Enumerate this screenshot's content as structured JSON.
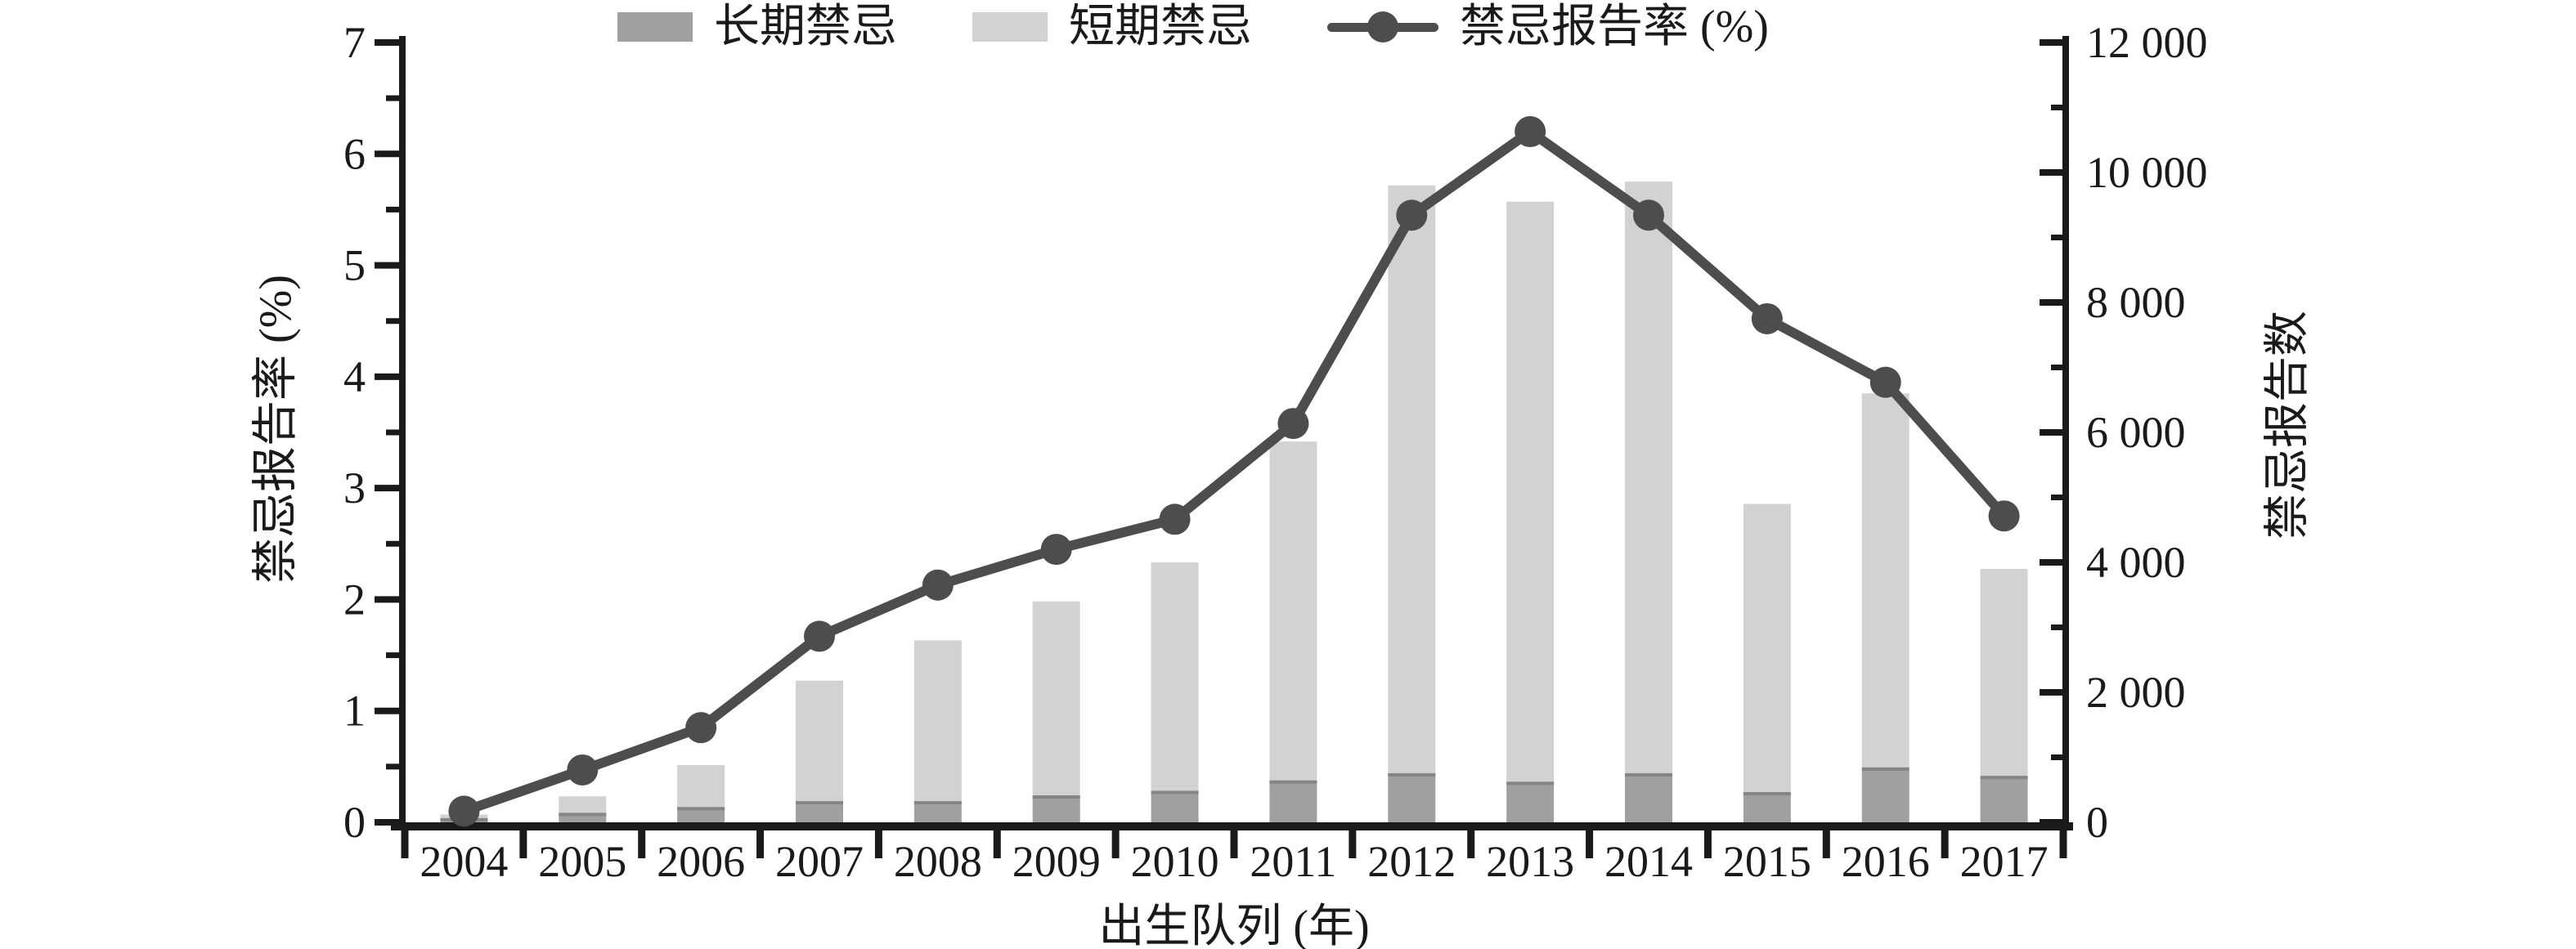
{
  "chart_data": {
    "type": "composite-bar-line",
    "title": "",
    "categories": [
      "2004",
      "2005",
      "2006",
      "2007",
      "2008",
      "2009",
      "2010",
      "2011",
      "2012",
      "2013",
      "2014",
      "2015",
      "2016",
      "2017"
    ],
    "series": [
      {
        "name": "长期禁忌",
        "type": "bar-stacked",
        "axis": "right",
        "values": [
          40,
          120,
          210,
          300,
          300,
          390,
          460,
          620,
          730,
          600,
          730,
          440,
          820,
          690
        ],
        "color": "#a0a0a0",
        "edge_color": "#858585"
      },
      {
        "name": "短期禁忌",
        "type": "bar-stacked",
        "axis": "right",
        "values": [
          80,
          280,
          670,
          1880,
          2500,
          3010,
          3540,
          5240,
          9070,
          8950,
          9130,
          4460,
          5780,
          3210
        ],
        "color": "#d2d2d2"
      },
      {
        "name": "禁忌报告率 (%)",
        "type": "line",
        "axis": "left",
        "values": [
          0.1,
          0.47,
          0.85,
          1.67,
          2.13,
          2.45,
          2.72,
          3.58,
          5.45,
          6.2,
          5.45,
          4.52,
          3.95,
          2.75
        ],
        "color": "#4d4d4d"
      }
    ],
    "left_axis": {
      "label": "禁忌报告率 (%)",
      "min": 0,
      "max": 7,
      "major_step": 1,
      "minor_step": 0.5,
      "tick_labels": [
        "0",
        "1",
        "2",
        "3",
        "4",
        "5",
        "6",
        "7"
      ]
    },
    "right_axis": {
      "label": "禁忌报告数",
      "min": 0,
      "max": 12000,
      "major_step": 2000,
      "minor_step": 1000,
      "tick_labels": [
        "0",
        "2 000",
        "4 000",
        "6 000",
        "8 000",
        "10 000",
        "12 000"
      ]
    },
    "x_axis": {
      "label": "出生队列 (年)"
    },
    "legend_position": "top-center",
    "grid": false
  },
  "legend": {
    "items": [
      {
        "label": "长期禁忌",
        "swatch_color": "#a0a0a0",
        "marker": "bar"
      },
      {
        "label": "短期禁忌",
        "swatch_color": "#d2d2d2",
        "marker": "bar"
      },
      {
        "label": "禁忌报告率 (%)",
        "swatch_color": "#4d4d4d",
        "marker": "line-circle"
      }
    ]
  },
  "colors": {
    "long_term_bar": "#a0a0a0",
    "long_term_bar_edge": "#858585",
    "short_term_bar": "#d2d2d2",
    "rate_line": "#4d4d4d",
    "axis": "#1a1a1a",
    "background": "#ffffff"
  }
}
